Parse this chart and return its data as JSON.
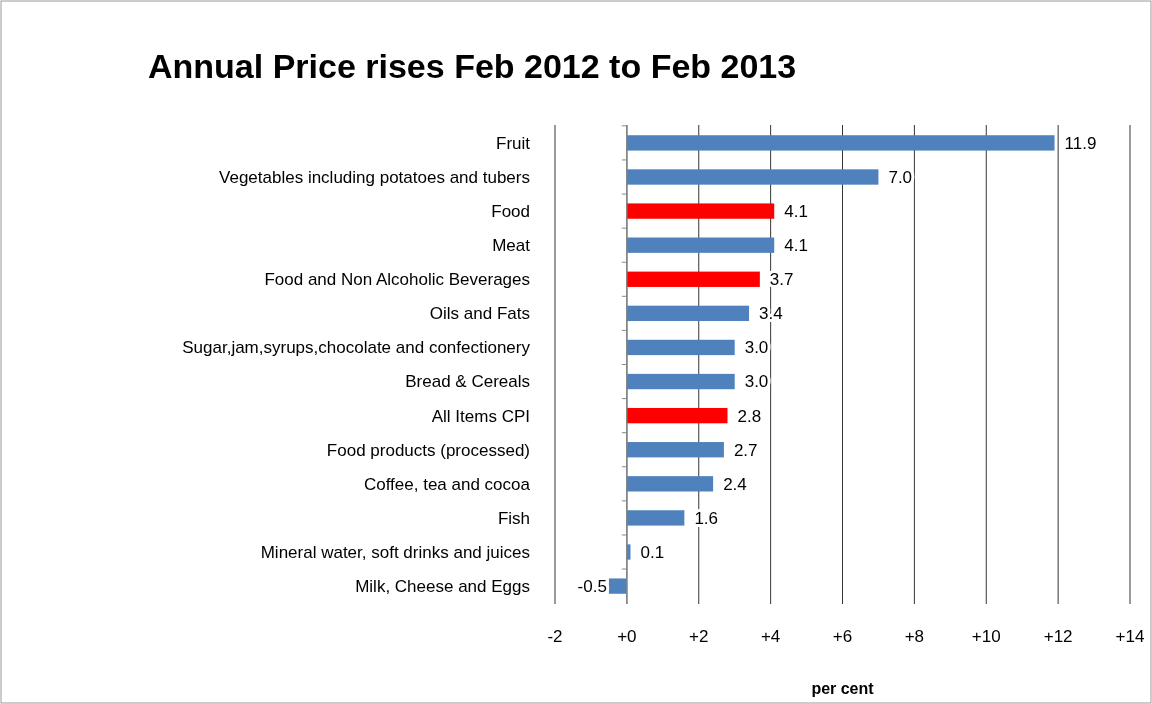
{
  "chart_data": {
    "type": "bar",
    "orientation": "horizontal",
    "title": "Annual Price rises Feb 2012 to Feb 2013",
    "xlabel": "per cent",
    "categories": [
      "Fruit",
      "Vegetables including potatoes and tubers",
      "Food",
      "Meat",
      "Food and Non Alcoholic Beverages",
      "Oils and Fats",
      "Sugar,jam,syrups,chocolate and confectionery",
      "Bread & Cereals",
      "All Items CPI",
      "Food products (processed)",
      "Coffee, tea and cocoa",
      "Fish",
      "Mineral water, soft drinks and juices",
      "Milk, Cheese and Eggs"
    ],
    "values": [
      11.9,
      7.0,
      4.1,
      4.1,
      3.7,
      3.4,
      3.0,
      3.0,
      2.8,
      2.7,
      2.4,
      1.6,
      0.1,
      -0.5
    ],
    "value_labels": [
      "11.9",
      "7.0",
      "4.1",
      "4.1",
      "3.7",
      "3.4",
      "3.0",
      "3.0",
      "2.8",
      "2.7",
      "2.4",
      "1.6",
      "0.1",
      "-0.5"
    ],
    "colors": [
      "#4f81bd",
      "#4f81bd",
      "#ff0000",
      "#4f81bd",
      "#ff0000",
      "#4f81bd",
      "#4f81bd",
      "#4f81bd",
      "#ff0000",
      "#4f81bd",
      "#4f81bd",
      "#4f81bd",
      "#4f81bd",
      "#4f81bd"
    ],
    "xlim": [
      -2,
      14
    ],
    "xticks": [
      -2,
      {
        "value": 0,
        "label": "+0"
      },
      {
        "value": 2,
        "label": "+2"
      },
      {
        "value": 4,
        "label": "+4"
      },
      {
        "value": 6,
        "label": "+6"
      },
      {
        "value": 8,
        "label": "+8"
      },
      {
        "value": 10,
        "label": "+10"
      },
      {
        "value": 12,
        "label": "+12"
      },
      {
        "value": 14,
        "label": "+14"
      }
    ],
    "grid": "x"
  }
}
